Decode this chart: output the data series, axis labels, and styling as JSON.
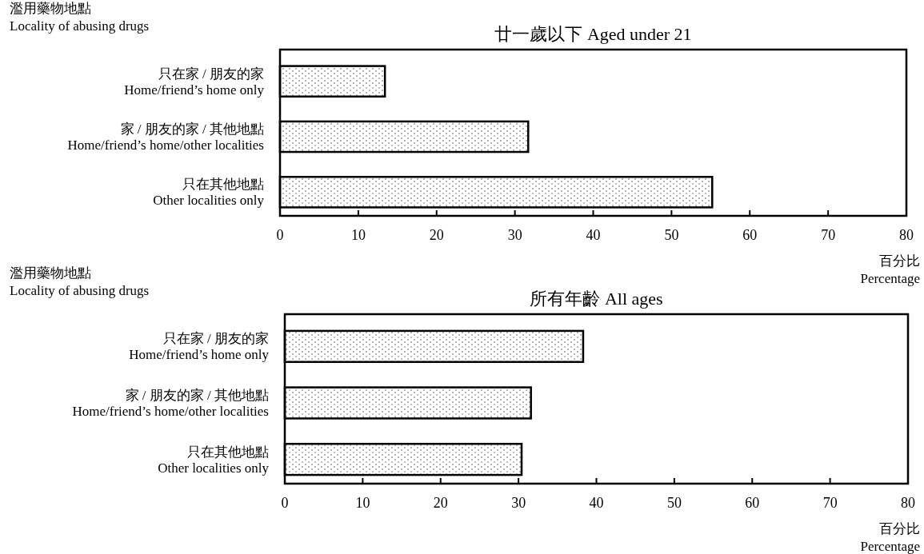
{
  "chart_data": [
    {
      "type": "bar",
      "orientation": "horizontal",
      "title": "廿一歲以下  Aged under 21",
      "ylabel": "濫用藥物地點\nLocality of abusing drugs",
      "xlabel": "百分比\nPercentage",
      "categories": [
        "只在家 / 朋友的家\nHome/friend’s home only",
        "家 / 朋友的家 / 其他地點\nHome/friend’s home/other localities",
        "只在其他地點\nOther localities only"
      ],
      "values": [
        13.4,
        31.7,
        55.2
      ],
      "color": "#ffffff",
      "xlim": [
        0,
        80
      ],
      "xticks": [
        0,
        10,
        20,
        30,
        40,
        50,
        60,
        70,
        80
      ]
    },
    {
      "type": "bar",
      "orientation": "horizontal",
      "title": "所有年齡  All ages",
      "ylabel": "濫用藥物地點\nLocality of abusing drugs",
      "xlabel": "百分比\nPercentage",
      "categories": [
        "只在家 / 朋友的家\nHome/friend’s home only",
        "家 / 朋友的家 / 其他地點\nHome/friend’s home/other localities",
        "只在其他地點\nOther localities only"
      ],
      "values": [
        38.3,
        31.6,
        30.4
      ],
      "color": "#ffffff",
      "xlim": [
        0,
        80
      ],
      "xticks": [
        0,
        10,
        20,
        30,
        40,
        50,
        60,
        70,
        80
      ]
    }
  ]
}
